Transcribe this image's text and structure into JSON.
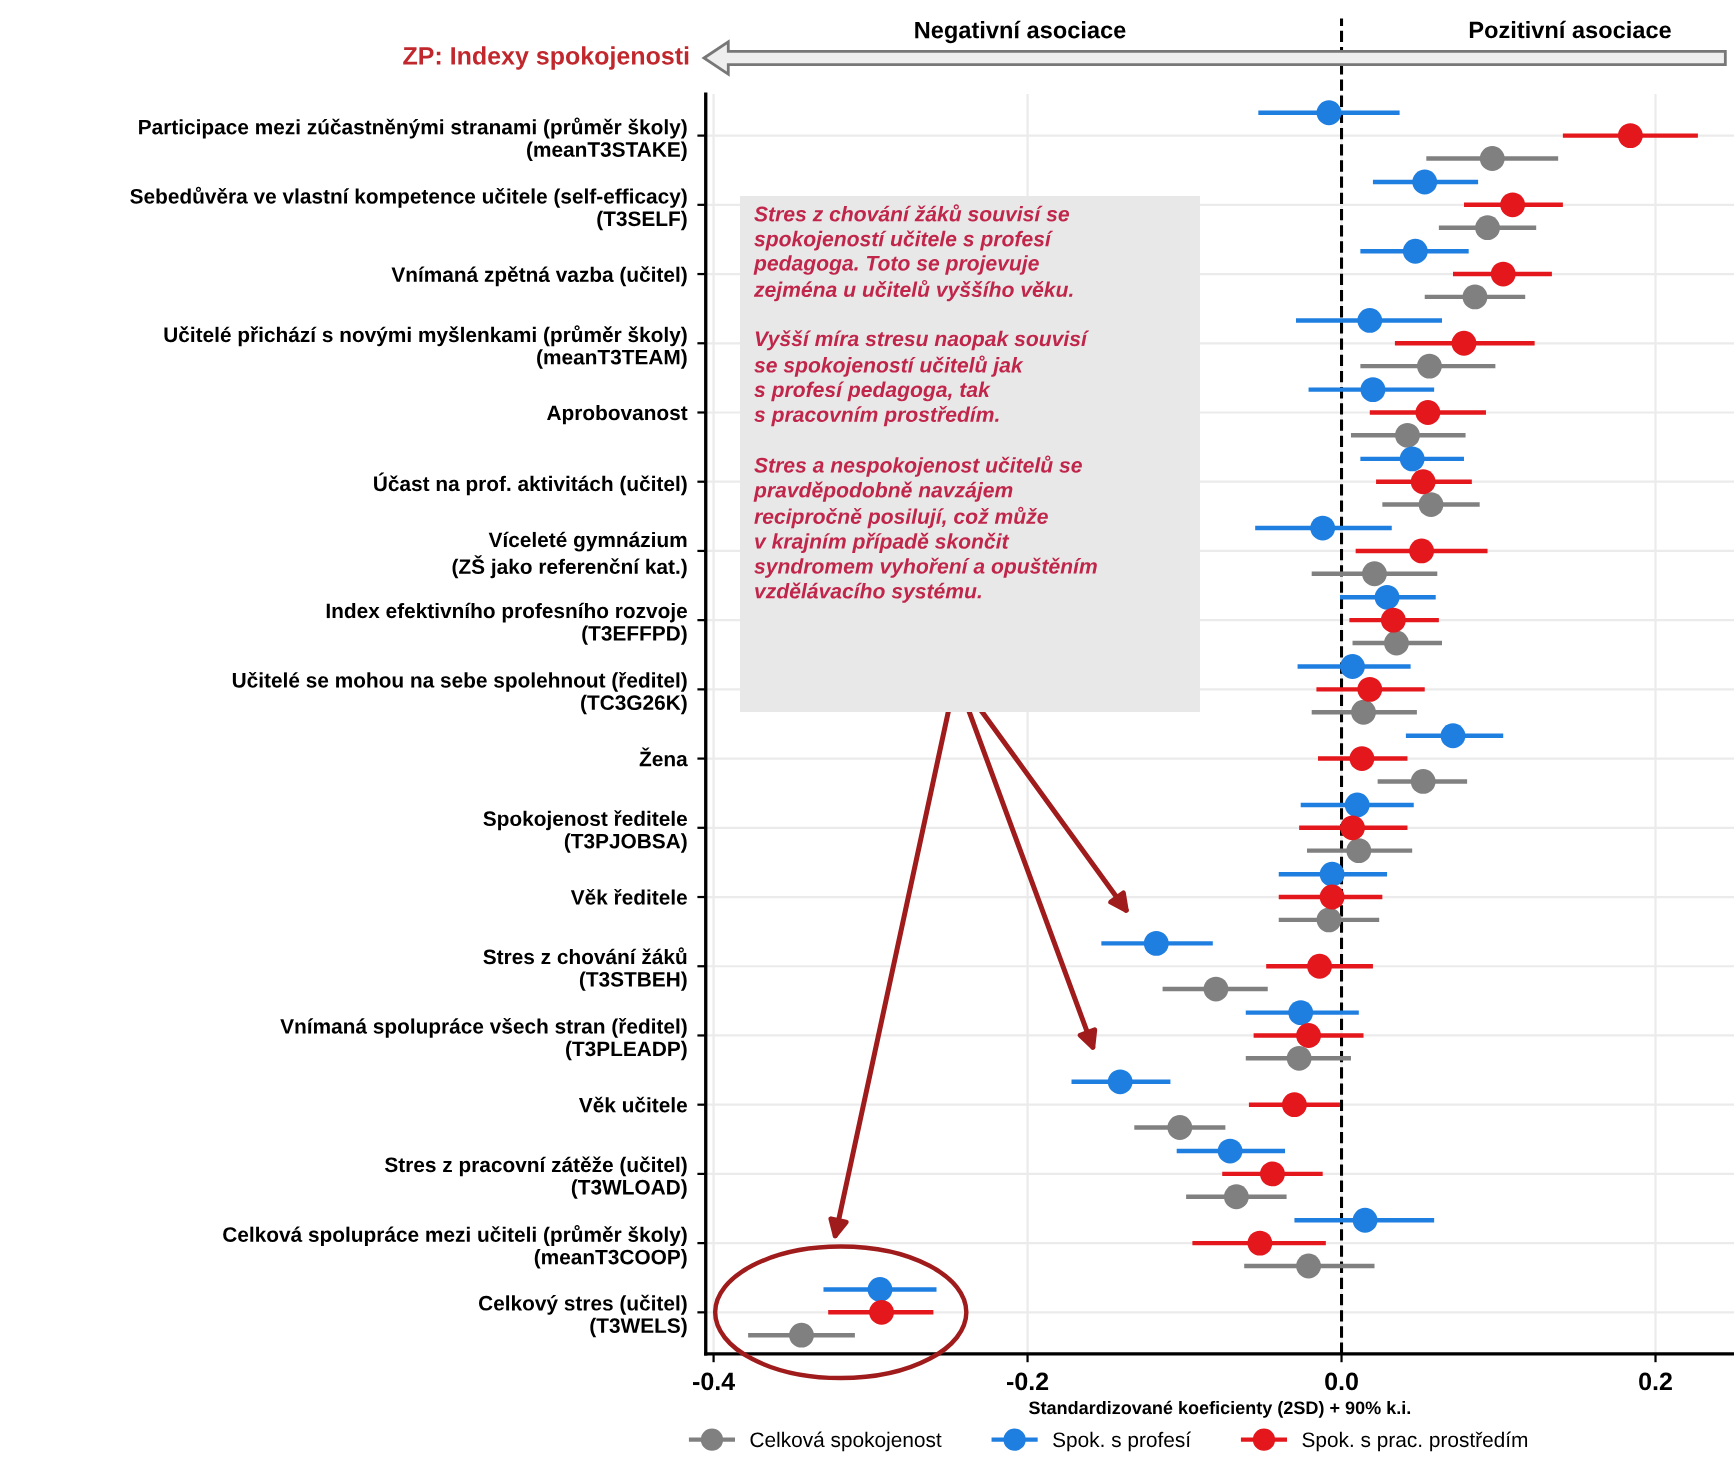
{
  "chart_data": {
    "type": "scatter",
    "orientation": "horizontal",
    "categories": [
      "Participace mezi zúčastněnými stranami (průměr školy)\n(meanT3STAKE)",
      "Sebedůvěra ve vlastní kompetence učitele (self-efficacy)\n(T3SELF)",
      "Vnímaná zpětná vazba (učitel)",
      "Učitelé přichází s novými myšlenkami (průměr školy)\n(meanT3TEAM)",
      "Aprobovanost",
      "Účast na prof. aktivitách (učitel)",
      "Víceleté gymnázium\n(ZŠ jako referenční kat.)",
      "Index efektivního profesního rozvoje\n(T3EFFPD)",
      "Učitelé se mohou na sebe spolehnout (ředitel)\n(TC3G26K)",
      "Žena",
      "Spokojenost ředitele\n(T3PJOBSA)",
      "Věk ředitele",
      "Stres z chování žáků\n(T3STBEH)",
      "Vnímaná spolupráce všech stran (ředitel)\n(T3PLEADP)",
      "Věk učitele",
      "Stres z pracovní zátěže (učitel)\n(T3WLOAD)",
      "Celková spolupráce mezi učiteli (průměr školy)\n(meanT3COOP)",
      "Celkový stres (učitel)\n(T3WELS)"
    ],
    "series": [
      {
        "name": "Celková spokojenost",
        "color": "#808080",
        "values": [
          0.096,
          0.093,
          0.085,
          0.056,
          0.042,
          0.057,
          0.021,
          0.035,
          0.014,
          0.052,
          0.011,
          -0.008,
          -0.08,
          -0.027,
          -0.103,
          -0.067,
          -0.021,
          -0.344
        ],
        "errors": [
          [
            0.054,
            0.138
          ],
          [
            0.062,
            0.124
          ],
          [
            0.053,
            0.117
          ],
          [
            0.012,
            0.098
          ],
          [
            0.006,
            0.079
          ],
          [
            0.026,
            0.088
          ],
          [
            -0.019,
            0.061
          ],
          [
            0.007,
            0.064
          ],
          [
            -0.019,
            0.048
          ],
          [
            0.023,
            0.08
          ],
          [
            -0.022,
            0.045
          ],
          [
            -0.04,
            0.024
          ],
          [
            -0.114,
            -0.047
          ],
          [
            -0.061,
            0.006
          ],
          [
            -0.132,
            -0.074
          ],
          [
            -0.099,
            -0.035
          ],
          [
            -0.062,
            0.021
          ],
          [
            -0.378,
            -0.31
          ]
        ]
      },
      {
        "name": "Spok. s profesí",
        "color": "#1f7fe0",
        "values": [
          -0.008,
          0.053,
          0.047,
          0.018,
          0.02,
          0.045,
          -0.012,
          0.029,
          0.007,
          0.071,
          0.01,
          -0.006,
          -0.118,
          -0.026,
          -0.141,
          -0.071,
          0.015,
          -0.294
        ],
        "errors": [
          [
            -0.053,
            0.037
          ],
          [
            0.02,
            0.087
          ],
          [
            0.012,
            0.081
          ],
          [
            -0.029,
            0.064
          ],
          [
            -0.021,
            0.059
          ],
          [
            0.012,
            0.078
          ],
          [
            -0.055,
            0.032
          ],
          [
            -0.001,
            0.06
          ],
          [
            -0.028,
            0.044
          ],
          [
            0.041,
            0.103
          ],
          [
            -0.026,
            0.046
          ],
          [
            -0.04,
            0.029
          ],
          [
            -0.153,
            -0.082
          ],
          [
            -0.061,
            0.011
          ],
          [
            -0.172,
            -0.109
          ],
          [
            -0.105,
            -0.036
          ],
          [
            -0.03,
            0.059
          ],
          [
            -0.33,
            -0.258
          ]
        ]
      },
      {
        "name": "Spok. s prac. prostředím",
        "color": "#e3171c",
        "values": [
          0.184,
          0.109,
          0.103,
          0.078,
          0.055,
          0.052,
          0.051,
          0.033,
          0.018,
          0.013,
          0.007,
          -0.006,
          -0.014,
          -0.021,
          -0.03,
          -0.044,
          -0.052,
          -0.293
        ],
        "errors": [
          [
            0.141,
            0.227
          ],
          [
            0.078,
            0.141
          ],
          [
            0.071,
            0.134
          ],
          [
            0.034,
            0.123
          ],
          [
            0.018,
            0.092
          ],
          [
            0.022,
            0.083
          ],
          [
            0.009,
            0.093
          ],
          [
            0.005,
            0.062
          ],
          [
            -0.016,
            0.053
          ],
          [
            -0.015,
            0.042
          ],
          [
            -0.027,
            0.042
          ],
          [
            -0.04,
            0.026
          ],
          [
            -0.048,
            0.02
          ],
          [
            -0.056,
            0.014
          ],
          [
            -0.059,
            -0.001
          ],
          [
            -0.076,
            -0.012
          ],
          [
            -0.095,
            -0.01
          ],
          [
            -0.327,
            -0.26
          ]
        ]
      }
    ],
    "xlim": [
      -0.405,
      0.25
    ],
    "xticks": [
      -0.4,
      -0.2,
      {
        "value": 0,
        "label": "0.0"
      },
      0.2
    ],
    "xlabel": "Standardizované koeficienty (2SD) + 90% k.i.",
    "ref_lines": [
      {
        "axis": "x",
        "value": 0,
        "line_style": "dashed",
        "color": "#000000"
      }
    ],
    "annotations": [
      "ZP: Indexy spokojenosti",
      "Negativní asociace",
      "Pozitivní asociace",
      "Stres z chování žáků souvisí se\nspokojeností učitele s profesí\npedagoga. Toto se projevuje\nzejména u učitelů vyššího věku.\n\nVyšší míra stresu naopak souvisí\nse spokojeností učitelů jak\ns profesí pedagoga, tak\ns pracovním prostředím.\n\nStres a nespokojenost učitelů se\npravděpodobně navzájem\nrecipročně posilují, což může\nv krajním případě skončit\nsyndromem vyhoření a opuštěním\nvzdělávacího systému."
    ],
    "grid": true,
    "legend": "bottom",
    "marker": "circle"
  }
}
